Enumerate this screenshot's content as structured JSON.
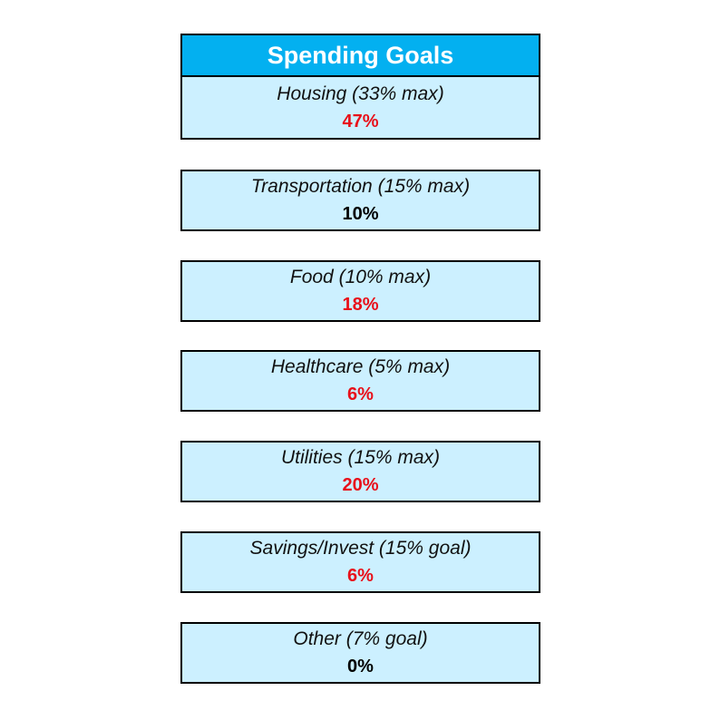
{
  "title": "Spending Goals",
  "goals": [
    {
      "label": "Housing (33% max)",
      "value": "47%",
      "status": "over"
    },
    {
      "label": "Transportation (15% max)",
      "value": "10%",
      "status": "ok"
    },
    {
      "label": "Food (10% max)",
      "value": "18%",
      "status": "over"
    },
    {
      "label": "Healthcare (5% max)",
      "value": "6%",
      "status": "over"
    },
    {
      "label": "Utilities (15% max)",
      "value": "20%",
      "status": "over"
    },
    {
      "label": "Savings/Invest (15% goal)",
      "value": "6%",
      "status": "over"
    },
    {
      "label": "Other (7% goal)",
      "value": "0%",
      "status": "ok"
    }
  ],
  "colors": {
    "header_bg": "#03b0f0",
    "cell_bg": "#ccf0ff",
    "over": "#e8101a",
    "ok": "#000000"
  }
}
